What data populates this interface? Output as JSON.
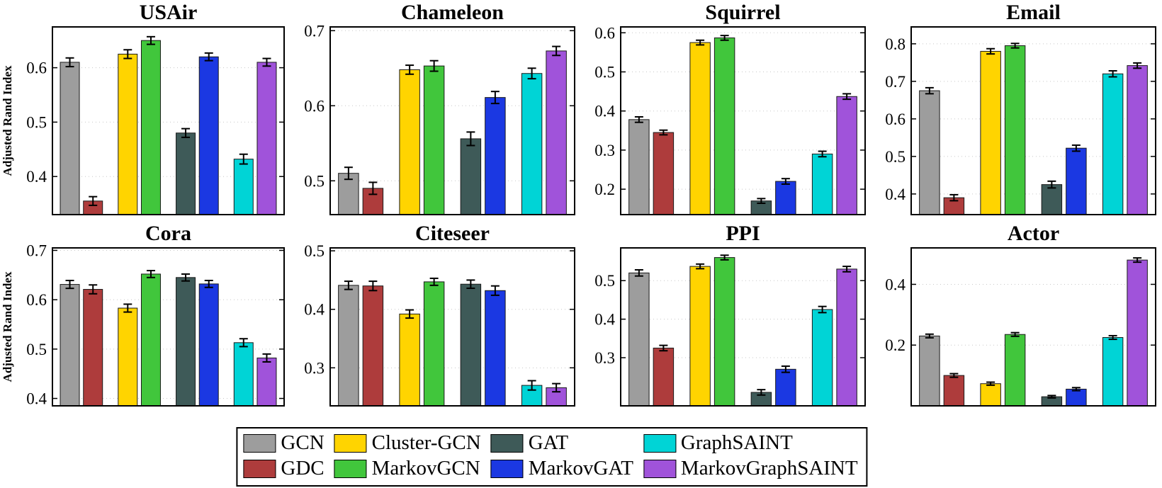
{
  "figure": {
    "ylabel": "Adjusted Rand Index",
    "methods": [
      "GCN",
      "GDC",
      "Cluster-GCN",
      "MarkovGCN",
      "GAT",
      "MarkovGAT",
      "GraphSAINT",
      "MarkovGraphSAINT"
    ],
    "colors": {
      "GCN": "#9d9d9d",
      "GDC": "#ae3c3c",
      "Cluster-GCN": "#ffd400",
      "MarkovGCN": "#41c63c",
      "GAT": "#3e5a58",
      "MarkovGAT": "#1b38e2",
      "GraphSAINT": "#00d4d6",
      "MarkovGraphSAINT": "#a053da"
    },
    "legend": {
      "rows": [
        [
          "GCN",
          "Cluster-GCN",
          "GAT",
          "GraphSAINT"
        ],
        [
          "GDC",
          "MarkovGCN",
          "MarkovGAT",
          "MarkovGraphSAINT"
        ]
      ]
    }
  },
  "chart_data": [
    {
      "type": "bar",
      "title": "USAir",
      "show_ylabel": true,
      "categories": [
        "GCN",
        "GDC",
        "Cluster-GCN",
        "MarkovGCN",
        "GAT",
        "MarkovGAT",
        "GraphSAINT",
        "MarkovGraphSAINT"
      ],
      "values": [
        0.61,
        0.355,
        0.625,
        0.65,
        0.48,
        0.62,
        0.432,
        0.61
      ],
      "errors": [
        0.008,
        0.008,
        0.008,
        0.007,
        0.008,
        0.007,
        0.009,
        0.007
      ],
      "ylim": [
        0.33,
        0.675
      ],
      "yticks": [
        0.4,
        0.5,
        0.6
      ]
    },
    {
      "type": "bar",
      "title": "Chameleon",
      "show_ylabel": false,
      "categories": [
        "GCN",
        "GDC",
        "Cluster-GCN",
        "MarkovGCN",
        "GAT",
        "MarkovGAT",
        "GraphSAINT",
        "MarkovGraphSAINT"
      ],
      "values": [
        0.51,
        0.49,
        0.648,
        0.653,
        0.556,
        0.611,
        0.643,
        0.673
      ],
      "errors": [
        0.008,
        0.008,
        0.006,
        0.007,
        0.009,
        0.008,
        0.007,
        0.006
      ],
      "ylim": [
        0.455,
        0.705
      ],
      "yticks": [
        0.5,
        0.6,
        0.7
      ]
    },
    {
      "type": "bar",
      "title": "Squirrel",
      "show_ylabel": false,
      "categories": [
        "GCN",
        "GDC",
        "Cluster-GCN",
        "MarkovGCN",
        "GAT",
        "MarkovGAT",
        "GraphSAINT",
        "MarkovGraphSAINT"
      ],
      "values": [
        0.378,
        0.345,
        0.575,
        0.587,
        0.17,
        0.22,
        0.29,
        0.437
      ],
      "errors": [
        0.007,
        0.006,
        0.006,
        0.006,
        0.006,
        0.007,
        0.007,
        0.007
      ],
      "ylim": [
        0.135,
        0.615
      ],
      "yticks": [
        0.2,
        0.3,
        0.4,
        0.5,
        0.6
      ]
    },
    {
      "type": "bar",
      "title": "Email",
      "show_ylabel": false,
      "categories": [
        "GCN",
        "GDC",
        "Cluster-GCN",
        "MarkovGCN",
        "GAT",
        "MarkovGAT",
        "GraphSAINT",
        "MarkovGraphSAINT"
      ],
      "values": [
        0.675,
        0.39,
        0.78,
        0.795,
        0.425,
        0.522,
        0.72,
        0.742
      ],
      "errors": [
        0.008,
        0.008,
        0.007,
        0.006,
        0.009,
        0.008,
        0.008,
        0.007
      ],
      "ylim": [
        0.345,
        0.845
      ],
      "yticks": [
        0.4,
        0.5,
        0.6,
        0.7,
        0.8
      ]
    },
    {
      "type": "bar",
      "title": "Cora",
      "show_ylabel": true,
      "categories": [
        "GCN",
        "GDC",
        "Cluster-GCN",
        "MarkovGCN",
        "GAT",
        "MarkovGAT",
        "GraphSAINT",
        "MarkovGraphSAINT"
      ],
      "values": [
        0.631,
        0.621,
        0.583,
        0.652,
        0.645,
        0.632,
        0.513,
        0.482
      ],
      "errors": [
        0.008,
        0.009,
        0.008,
        0.007,
        0.007,
        0.007,
        0.008,
        0.008
      ],
      "ylim": [
        0.385,
        0.705
      ],
      "yticks": [
        0.4,
        0.5,
        0.6,
        0.7
      ]
    },
    {
      "type": "bar",
      "title": "Citeseer",
      "show_ylabel": false,
      "categories": [
        "GCN",
        "GDC",
        "Cluster-GCN",
        "MarkovGCN",
        "GAT",
        "MarkovGAT",
        "GraphSAINT",
        "MarkovGraphSAINT"
      ],
      "values": [
        0.441,
        0.44,
        0.392,
        0.447,
        0.443,
        0.432,
        0.27,
        0.266
      ],
      "errors": [
        0.007,
        0.008,
        0.007,
        0.006,
        0.007,
        0.008,
        0.008,
        0.007
      ],
      "ylim": [
        0.235,
        0.505
      ],
      "yticks": [
        0.3,
        0.4,
        0.5
      ]
    },
    {
      "type": "bar",
      "title": "PPI",
      "show_ylabel": false,
      "categories": [
        "GCN",
        "GDC",
        "Cluster-GCN",
        "MarkovGCN",
        "GAT",
        "MarkovGAT",
        "GraphSAINT",
        "MarkovGraphSAINT"
      ],
      "values": [
        0.52,
        0.325,
        0.537,
        0.56,
        0.21,
        0.27,
        0.425,
        0.53
      ],
      "errors": [
        0.008,
        0.007,
        0.006,
        0.006,
        0.007,
        0.008,
        0.008,
        0.007
      ],
      "ylim": [
        0.175,
        0.585
      ],
      "yticks": [
        0.3,
        0.4,
        0.5
      ]
    },
    {
      "type": "bar",
      "title": "Actor",
      "show_ylabel": false,
      "categories": [
        "GCN",
        "GDC",
        "Cluster-GCN",
        "MarkovGCN",
        "GAT",
        "MarkovGAT",
        "GraphSAINT",
        "MarkovGraphSAINT"
      ],
      "values": [
        0.23,
        0.1,
        0.073,
        0.235,
        0.03,
        0.055,
        0.225,
        0.48
      ],
      "errors": [
        0.006,
        0.006,
        0.005,
        0.006,
        0.004,
        0.005,
        0.006,
        0.007
      ],
      "ylim": [
        0.0,
        0.52
      ],
      "yticks": [
        0.2,
        0.4
      ]
    }
  ]
}
